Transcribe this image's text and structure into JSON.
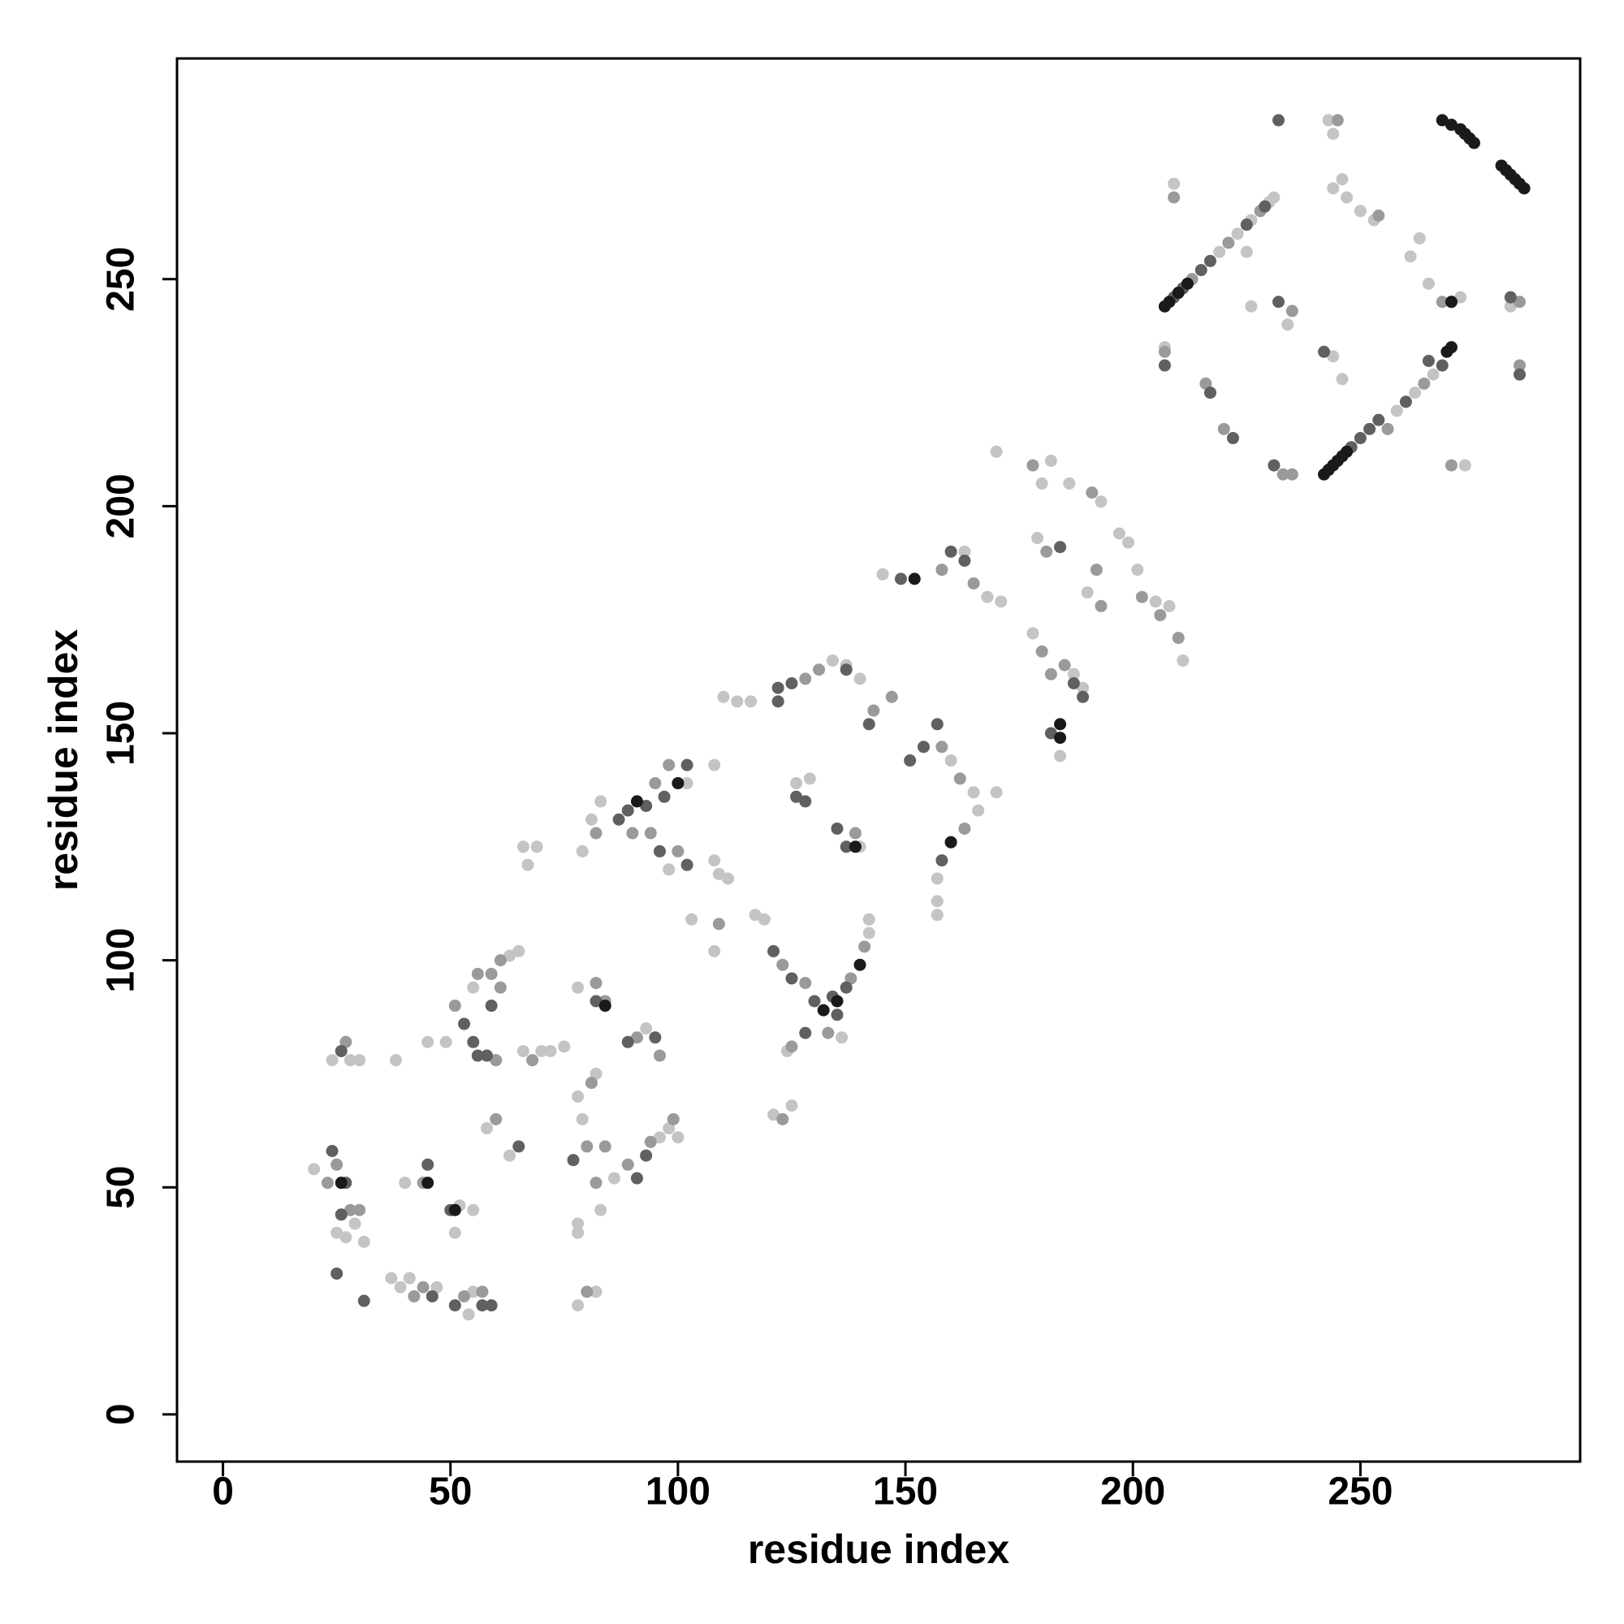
{
  "chart_data": {
    "type": "scatter",
    "x_label": "residue index",
    "y_label": "residue index",
    "xlim": [
      -10.1,
      298.3
    ],
    "ylim": [
      -10.4,
      298.6
    ],
    "xticks": [
      0,
      50,
      100,
      150,
      200,
      250
    ],
    "yticks": [
      0,
      50,
      100,
      150,
      200,
      250
    ],
    "grid": false,
    "series": [
      {
        "color": "#c4c4c4",
        "x": [
          243,
          244,
          209,
          244,
          246,
          247,
          250,
          253,
          261,
          263,
          265,
          273,
          225,
          226,
          234,
          207,
          244,
          246,
          283,
          272,
          219,
          223,
          226,
          230,
          231,
          258,
          262,
          266,
          145,
          163,
          168,
          171,
          170,
          182,
          180,
          186,
          193,
          179,
          197,
          199,
          201,
          190,
          205,
          208,
          211,
          178,
          187,
          189,
          184,
          160,
          165,
          166,
          170,
          157,
          157,
          157,
          140,
          137,
          134,
          110,
          113,
          116,
          126,
          129,
          140,
          108,
          102,
          83,
          81,
          79,
          98,
          66,
          67,
          69,
          108,
          109,
          111,
          103,
          108,
          117,
          119,
          142,
          142,
          136,
          124,
          121,
          125,
          24,
          28,
          30,
          38,
          45,
          40,
          52,
          55,
          51,
          49,
          55,
          63,
          65,
          58,
          63,
          66,
          70,
          72,
          75,
          78,
          78,
          79,
          82,
          83,
          86,
          96,
          98,
          100,
          93,
          20,
          27,
          29,
          31,
          37,
          39,
          41,
          47,
          54,
          55,
          78,
          78,
          78,
          82,
          25
        ],
        "y": [
          285,
          282,
          271,
          270,
          272,
          268,
          265,
          263,
          255,
          259,
          249,
          209,
          256,
          244,
          240,
          235,
          233,
          228,
          244,
          246,
          256,
          260,
          263,
          267,
          268,
          221,
          225,
          229,
          185,
          190,
          180,
          179,
          212,
          210,
          205,
          205,
          201,
          193,
          194,
          192,
          186,
          181,
          179,
          178,
          166,
          172,
          163,
          160,
          145,
          144,
          137,
          133,
          137,
          118,
          113,
          110,
          162,
          165,
          166,
          158,
          157,
          157,
          139,
          140,
          125,
          143,
          139,
          135,
          131,
          124,
          120,
          125,
          121,
          125,
          122,
          119,
          118,
          109,
          102,
          110,
          109,
          106,
          109,
          83,
          80,
          66,
          68,
          78,
          78,
          78,
          78,
          82,
          51,
          46,
          45,
          40,
          82,
          94,
          101,
          102,
          63,
          57,
          80,
          80,
          80,
          81,
          94,
          70,
          65,
          75,
          45,
          52,
          61,
          63,
          61,
          85,
          54,
          39,
          42,
          38,
          30,
          28,
          30,
          28,
          22,
          27,
          24,
          40,
          42,
          27,
          40
        ]
      },
      {
        "color": "#9a9a9a",
        "x": [
          245,
          209,
          207,
          216,
          220,
          233,
          235,
          254,
          285,
          270,
          268,
          285,
          213,
          221,
          228,
          256,
          264,
          235,
          158,
          165,
          178,
          191,
          181,
          192,
          193,
          202,
          210,
          206,
          180,
          185,
          182,
          162,
          163,
          158,
          131,
          128,
          143,
          147,
          139,
          98,
          95,
          90,
          94,
          100,
          82,
          109,
          123,
          128,
          133,
          138,
          141,
          125,
          123,
          27,
          44,
          51,
          56,
          59,
          61,
          61,
          60,
          60,
          68,
          82,
          84,
          81,
          80,
          84,
          82,
          89,
          94,
          99,
          91,
          96,
          23,
          25,
          28,
          30,
          42,
          44,
          53,
          57,
          80
        ],
        "y": [
          285,
          268,
          234,
          227,
          217,
          207,
          243,
          264,
          231,
          209,
          245,
          245,
          250,
          258,
          265,
          217,
          227,
          207,
          186,
          183,
          209,
          203,
          190,
          186,
          178,
          180,
          171,
          176,
          168,
          165,
          163,
          140,
          129,
          147,
          164,
          162,
          155,
          158,
          128,
          143,
          139,
          128,
          128,
          124,
          128,
          108,
          99,
          95,
          84,
          96,
          103,
          81,
          65,
          82,
          51,
          90,
          97,
          97,
          100,
          94,
          78,
          65,
          78,
          95,
          91,
          73,
          59,
          59,
          51,
          55,
          60,
          65,
          83,
          79,
          51,
          55,
          45,
          45,
          26,
          28,
          26,
          27,
          27
        ]
      },
      {
        "color": "#606060",
        "x": [
          232,
          207,
          217,
          222,
          231,
          232,
          242,
          265,
          283,
          270,
          285,
          209,
          211,
          215,
          217,
          225,
          229,
          248,
          250,
          252,
          254,
          260,
          268,
          149,
          160,
          163,
          184,
          187,
          189,
          182,
          157,
          154,
          151,
          160,
          158,
          142,
          125,
          122,
          122,
          137,
          126,
          128,
          135,
          137,
          102,
          102,
          87,
          89,
          93,
          97,
          96,
          121,
          125,
          130,
          134,
          137,
          135,
          128,
          26,
          50,
          45,
          53,
          55,
          56,
          58,
          59,
          65,
          82,
          77,
          91,
          93,
          89,
          95,
          24,
          27,
          26,
          25,
          31,
          46,
          51,
          57,
          59
        ],
        "y": [
          285,
          231,
          225,
          215,
          209,
          245,
          234,
          232,
          246,
          245,
          229,
          246,
          248,
          252,
          254,
          262,
          266,
          213,
          215,
          217,
          219,
          223,
          231,
          184,
          190,
          188,
          191,
          161,
          158,
          150,
          152,
          147,
          144,
          126,
          122,
          152,
          161,
          157,
          160,
          164,
          136,
          135,
          129,
          125,
          143,
          121,
          131,
          133,
          134,
          136,
          124,
          102,
          96,
          91,
          92,
          94,
          88,
          84,
          80,
          45,
          55,
          86,
          82,
          79,
          79,
          90,
          59,
          91,
          56,
          52,
          57,
          82,
          83,
          58,
          51,
          44,
          31,
          25,
          26,
          24,
          24,
          24
        ]
      },
      {
        "color": "#1a1a1a",
        "x": [
          268,
          270,
          272,
          273,
          274,
          275,
          281,
          282,
          283,
          284,
          285,
          286,
          207,
          208,
          210,
          212,
          242,
          243,
          244,
          245,
          246,
          247,
          269,
          270,
          270,
          152,
          184,
          184,
          160,
          139,
          91,
          100,
          135,
          140,
          132,
          45,
          51,
          26,
          84
        ],
        "y": [
          285,
          284,
          283,
          282,
          281,
          280,
          275,
          274,
          273,
          272,
          271,
          270,
          244,
          245,
          247,
          249,
          207,
          208,
          209,
          210,
          211,
          212,
          234,
          235,
          245,
          184,
          149,
          152,
          126,
          125,
          135,
          139,
          91,
          99,
          89,
          51,
          45,
          51,
          90
        ]
      }
    ]
  }
}
